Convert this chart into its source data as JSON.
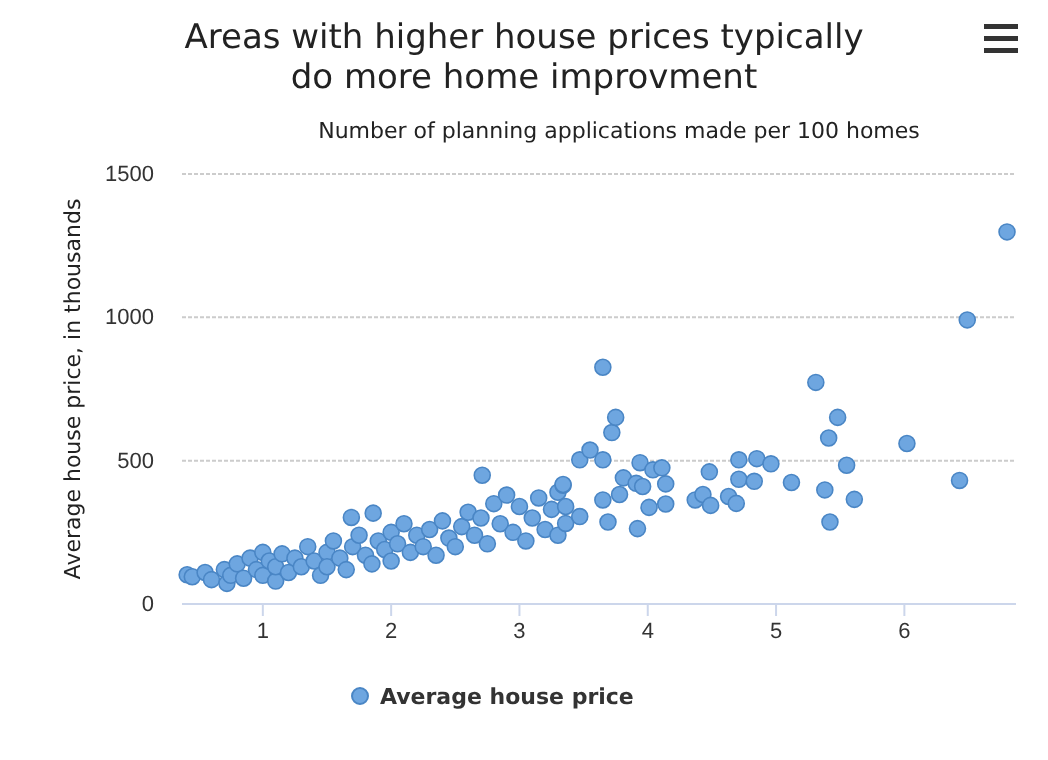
{
  "chart_data": {
    "type": "scatter",
    "title": "Areas with higher house prices typically do more home improvment",
    "xlabel": "Number of planning applications made per 100 homes",
    "ylabel": "Average house price, in thousands",
    "xlim": [
      0.37,
      6.87
    ],
    "xticks": [
      1,
      2,
      3,
      4,
      5,
      6
    ],
    "ylim": [
      0,
      1500
    ],
    "yticks": [
      0,
      500,
      1000,
      1500
    ],
    "grid": "y",
    "legend": "bottom",
    "marker": "circle",
    "series": [
      {
        "name": "Average house price",
        "color": "#6ea6e0",
        "x": [
          0.41,
          0.45,
          0.55,
          0.6,
          0.7,
          0.72,
          0.75,
          0.8,
          0.85,
          0.9,
          0.95,
          1.0,
          1.0,
          1.05,
          1.1,
          1.1,
          1.15,
          1.2,
          1.25,
          1.3,
          1.35,
          1.4,
          1.45,
          1.5,
          1.5,
          1.55,
          1.6,
          1.65,
          1.69,
          1.7,
          1.75,
          1.8,
          1.85,
          1.86,
          1.9,
          1.95,
          2.0,
          2.0,
          2.05,
          2.1,
          2.15,
          2.2,
          2.25,
          2.3,
          2.35,
          2.4,
          2.45,
          2.5,
          2.55,
          2.6,
          2.65,
          2.7,
          2.71,
          2.75,
          2.8,
          2.85,
          2.9,
          2.95,
          3.0,
          3.05,
          3.1,
          3.15,
          3.2,
          3.25,
          3.3,
          3.3,
          3.34,
          3.34,
          3.36,
          3.36,
          3.47,
          3.47,
          3.55,
          3.65,
          3.65,
          3.65,
          3.69,
          3.72,
          3.75,
          3.78,
          3.81,
          3.91,
          3.92,
          3.94,
          3.96,
          4.01,
          4.04,
          4.11,
          4.14,
          4.14,
          4.37,
          4.43,
          4.48,
          4.49,
          4.63,
          4.69,
          4.71,
          4.71,
          4.83,
          4.85,
          4.96,
          5.12,
          5.31,
          5.38,
          5.41,
          5.42,
          5.48,
          5.55,
          5.61,
          6.02,
          6.43,
          6.49,
          6.8
        ],
        "values": [
          102,
          95,
          110,
          85,
          120,
          72,
          100,
          140,
          90,
          160,
          120,
          180,
          100,
          150,
          80,
          130,
          175,
          110,
          160,
          130,
          200,
          150,
          100,
          180,
          130,
          220,
          160,
          120,
          302,
          200,
          240,
          170,
          140,
          317,
          220,
          190,
          250,
          150,
          210,
          280,
          180,
          240,
          200,
          260,
          170,
          290,
          230,
          200,
          270,
          320,
          240,
          300,
          449,
          210,
          350,
          280,
          380,
          250,
          340,
          220,
          300,
          370,
          260,
          330,
          240,
          390,
          414,
          417,
          340,
          281,
          305,
          503,
          537,
          826,
          503,
          363,
          286,
          598,
          651,
          382,
          440,
          421,
          263,
          493,
          410,
          337,
          468,
          475,
          419,
          349,
          363,
          382,
          461,
          344,
          375,
          351,
          503,
          435,
          428,
          507,
          489,
          424,
          773,
          398,
          579,
          286,
          651,
          484,
          365,
          560,
          431,
          991,
          1298
        ]
      }
    ]
  }
}
